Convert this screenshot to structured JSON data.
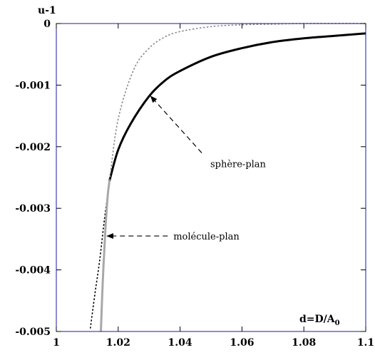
{
  "chart_data": {
    "type": "line",
    "xlabel": "d=D/A",
    "xlabel_subscript": "0",
    "ylabel": "u-1",
    "xlim": [
      1,
      1.1
    ],
    "ylim": [
      -0.005,
      0
    ],
    "x_ticks": [
      1,
      1.02,
      1.04,
      1.06,
      1.08,
      1.1
    ],
    "x_tick_labels": [
      "1",
      "1.02",
      "1.04",
      "1.06",
      "1.08",
      "1.1"
    ],
    "y_ticks": [
      0,
      -0.001,
      -0.002,
      -0.003,
      -0.004,
      -0.005
    ],
    "y_tick_labels": [
      "0",
      "-0.001",
      "-0.002",
      "-0.003",
      "-0.004",
      "-0.005"
    ],
    "grid": false,
    "series": [
      {
        "style": "black-solid-thick",
        "color": "#000000",
        "points": [
          [
            1.0172,
            -0.00255
          ],
          [
            1.02,
            -0.00205
          ],
          [
            1.024,
            -0.00163
          ],
          [
            1.03,
            -0.00118
          ],
          [
            1.035,
            -0.00093
          ],
          [
            1.04,
            -0.00077
          ],
          [
            1.05,
            -0.00054
          ],
          [
            1.06,
            -0.0004
          ],
          [
            1.07,
            -0.0003
          ],
          [
            1.08,
            -0.00024
          ],
          [
            1.09,
            -0.0002
          ],
          [
            1.1,
            -0.00016
          ]
        ]
      },
      {
        "style": "gray-dotted",
        "color": "#888888",
        "points": [
          [
            1.0172,
            -0.00255
          ],
          [
            1.02,
            -0.00155
          ],
          [
            1.025,
            -0.00075
          ],
          [
            1.03,
            -0.0004
          ],
          [
            1.035,
            -0.00022
          ],
          [
            1.04,
            -0.00013
          ],
          [
            1.05,
            -5e-05
          ],
          [
            1.06,
            -2e-05
          ],
          [
            1.07,
            -1e-05
          ],
          [
            1.08,
            0
          ],
          [
            1.1,
            0
          ]
        ]
      },
      {
        "style": "black-dotted",
        "color": "#000000",
        "points": [
          [
            1.011,
            -0.00495
          ],
          [
            1.0125,
            -0.00438
          ],
          [
            1.014,
            -0.00385
          ],
          [
            1.0155,
            -0.0032
          ],
          [
            1.0172,
            -0.00255
          ]
        ]
      },
      {
        "style": "gray-solid-thick",
        "color": "#aaaaaa",
        "points": [
          [
            1.0144,
            -0.005
          ],
          [
            1.015,
            -0.0042
          ],
          [
            1.0158,
            -0.0034
          ],
          [
            1.0166,
            -0.0028
          ],
          [
            1.0172,
            -0.00255
          ]
        ]
      }
    ],
    "annotations": [
      {
        "text": "sphère-plan",
        "arrow_from": [
          1.047,
          -0.0021
        ],
        "arrow_to": [
          1.0305,
          -0.00118
        ]
      },
      {
        "text": "molécule-plan",
        "arrow_from": [
          1.036,
          -0.00345
        ],
        "arrow_to": [
          1.0164,
          -0.00345
        ]
      }
    ]
  }
}
